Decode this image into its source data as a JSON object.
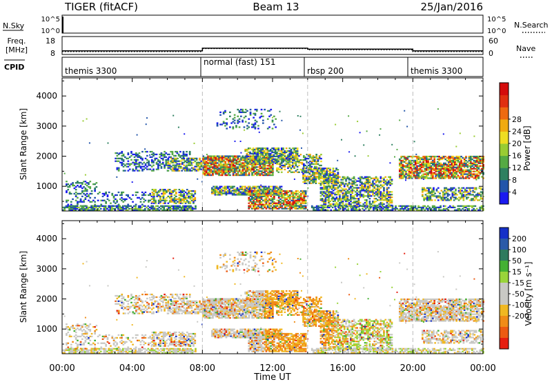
{
  "header": {
    "station": "TIGER (fitACF)",
    "beam": "Beam 13",
    "date": "25/Jan/2016"
  },
  "strips": {
    "nsky_label": "N.Sky",
    "nsearch_label": "N.Search",
    "count_ticks": [
      "10^5",
      "10^0"
    ],
    "freq_label": "Freq.",
    "freq_unit": "[MHz]",
    "freq_ticks": [
      "18",
      "8"
    ],
    "nave_label": "Nave",
    "nave_ticks": [
      "60",
      "0"
    ],
    "cpid_label": "CPID"
  },
  "chart_data": [
    {
      "type": "line",
      "name": "frequency-nave strip",
      "x_range_hours": [
        0,
        24
      ],
      "freq_ylim": [
        8,
        18
      ],
      "nave_ylim": [
        0,
        60
      ],
      "freq_series": {
        "x": [
          0,
          8,
          8,
          14,
          14,
          20,
          20,
          24
        ],
        "values": [
          10,
          10,
          11.5,
          11.5,
          11,
          11,
          10,
          10
        ]
      },
      "nave_series": {
        "x": [
          0,
          8,
          8,
          14,
          14,
          20,
          20,
          24
        ],
        "values": [
          10,
          10,
          20,
          20,
          16,
          16,
          10,
          10
        ]
      }
    },
    {
      "type": "table",
      "name": "cpid segments",
      "segments": [
        {
          "label": "themis 3300",
          "start": 0,
          "end": 8
        },
        {
          "label": "normal (fast) 151",
          "start": 8,
          "end": 14
        },
        {
          "label": "rbsp 200",
          "start": 14,
          "end": 20
        },
        {
          "label": "themis 3300",
          "start": 20,
          "end": 24
        }
      ]
    },
    {
      "type": "heatmap",
      "name": "power",
      "ylabel": "Slant Range [km]",
      "ylim": [
        180,
        4600
      ],
      "yticks": [
        "1000",
        "2000",
        "3000",
        "4000"
      ],
      "colorbar_label": "Power [dB]",
      "colorbar_ticks": [
        "4",
        "8",
        "12",
        "16",
        "20",
        "24",
        "28"
      ],
      "colorbar_colors": [
        "#1a1af0",
        "#2255aa",
        "#2e8060",
        "#55aa44",
        "#99cc33",
        "#eedd22",
        "#f0aa10",
        "#ee6a10",
        "#e03010",
        "#d40c0c"
      ]
    },
    {
      "type": "heatmap",
      "name": "velocity",
      "ylabel": "Slant Range [km]",
      "ylim": [
        180,
        4600
      ],
      "yticks": [
        "1000",
        "2000",
        "3000",
        "4000"
      ],
      "colorbar_label": "Velocity [m s⁻¹]",
      "colorbar_ticks": [
        "200",
        "100",
        "50",
        "15",
        "-15",
        "-50",
        "-100",
        "-200"
      ],
      "colorbar_colors": [
        "#1530c8",
        "#2a5aa8",
        "#2e7a5e",
        "#44b033",
        "#99d43a",
        "#c8c8c4",
        "#c8c8c4",
        "#f0b822",
        "#f08c18",
        "#ec5a12",
        "#e61e10"
      ]
    }
  ],
  "xaxis": {
    "label": "Time UT",
    "ticks": [
      "00:00",
      "04:00",
      "08:00",
      "12:00",
      "16:00",
      "20:00",
      "00:00"
    ]
  },
  "echo_regions": [
    {
      "t0": 0.0,
      "t1": 7.6,
      "r0": 190,
      "r1": 330,
      "kind": "ground",
      "d": 0.75
    },
    {
      "t0": 0.2,
      "t1": 2.0,
      "r0": 330,
      "r1": 1180,
      "kind": "low",
      "d": 0.32
    },
    {
      "t0": 2.0,
      "t1": 5.2,
      "r0": 330,
      "r1": 800,
      "kind": "low",
      "d": 0.22
    },
    {
      "t0": 5.1,
      "t1": 7.6,
      "r0": 420,
      "r1": 880,
      "kind": "mid",
      "d": 0.65
    },
    {
      "t0": 3.0,
      "t1": 7.4,
      "r0": 1500,
      "r1": 2150,
      "kind": "low",
      "d": 0.35
    },
    {
      "t0": 6.0,
      "t1": 8.0,
      "r0": 1500,
      "r1": 1950,
      "kind": "mid",
      "d": 0.55
    },
    {
      "t0": 8.0,
      "t1": 12.0,
      "r0": 1350,
      "r1": 2000,
      "kind": "high",
      "d": 0.85
    },
    {
      "t0": 10.4,
      "t1": 13.4,
      "r0": 1750,
      "r1": 2250,
      "kind": "mid",
      "d": 0.7
    },
    {
      "t0": 12.2,
      "t1": 14.8,
      "r0": 1450,
      "r1": 2050,
      "kind": "mid",
      "d": 0.5
    },
    {
      "t0": 8.5,
      "t1": 12.5,
      "r0": 700,
      "r1": 980,
      "kind": "mid",
      "d": 0.8
    },
    {
      "t0": 10.6,
      "t1": 13.9,
      "r0": 240,
      "r1": 860,
      "kind": "high",
      "d": 0.75
    },
    {
      "t0": 13.7,
      "t1": 15.7,
      "r0": 1080,
      "r1": 1620,
      "kind": "mid",
      "d": 0.7
    },
    {
      "t0": 14.7,
      "t1": 18.8,
      "r0": 300,
      "r1": 1300,
      "kind": "mid",
      "d": 0.6
    },
    {
      "t0": 14.2,
      "t1": 20.0,
      "r0": 190,
      "r1": 330,
      "kind": "ground",
      "d": 0.6
    },
    {
      "t0": 8.8,
      "t1": 12.2,
      "r0": 2900,
      "r1": 3550,
      "kind": "low",
      "d": 0.18
    },
    {
      "t0": 19.2,
      "t1": 24.0,
      "r0": 1250,
      "r1": 2000,
      "kind": "high",
      "d": 0.75
    },
    {
      "t0": 20.5,
      "t1": 24.0,
      "r0": 520,
      "r1": 950,
      "kind": "mid",
      "d": 0.5
    },
    {
      "t0": 20.0,
      "t1": 24.0,
      "r0": 190,
      "r1": 330,
      "kind": "ground",
      "d": 0.65
    }
  ]
}
